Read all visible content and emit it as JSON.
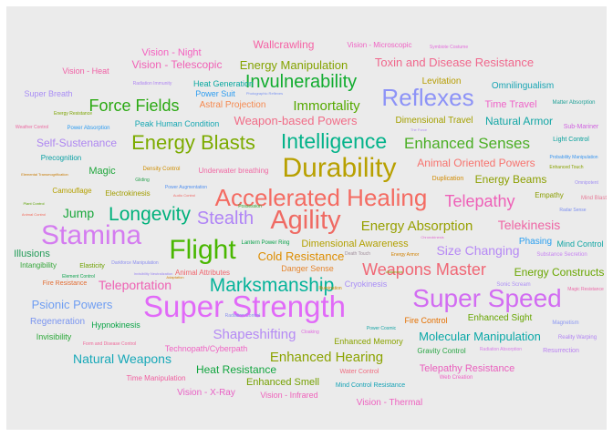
{
  "chart_data": {
    "type": "wordcloud",
    "background_panel": "#ebebeb",
    "color_scale": "hue",
    "words": [
      {
        "text": "Super Strength",
        "weight": 1.0
      },
      {
        "text": "Super Speed",
        "weight": 0.9
      },
      {
        "text": "Stamina",
        "weight": 0.88
      },
      {
        "text": "Flight",
        "weight": 0.86
      },
      {
        "text": "Durability",
        "weight": 0.85
      },
      {
        "text": "Agility",
        "weight": 0.82
      },
      {
        "text": "Accelerated Healing",
        "weight": 0.78
      },
      {
        "text": "Reflexes",
        "weight": 0.75
      },
      {
        "text": "Intelligence",
        "weight": 0.72
      },
      {
        "text": "Energy Blasts",
        "weight": 0.7
      },
      {
        "text": "Marksmanship",
        "weight": 0.67
      },
      {
        "text": "Longevity",
        "weight": 0.66
      },
      {
        "text": "Stealth",
        "weight": 0.62
      },
      {
        "text": "Invulnerability",
        "weight": 0.62
      },
      {
        "text": "Weapons Master",
        "weight": 0.58
      },
      {
        "text": "Telepathy",
        "weight": 0.57
      },
      {
        "text": "Enhanced Senses",
        "weight": 0.55
      },
      {
        "text": "Force Fields",
        "weight": 0.55
      },
      {
        "text": "Immortality",
        "weight": 0.5
      },
      {
        "text": "Energy Absorption",
        "weight": 0.5
      },
      {
        "text": "Enhanced Hearing",
        "weight": 0.48
      },
      {
        "text": "Shapeshifting",
        "weight": 0.46
      },
      {
        "text": "Teleportation",
        "weight": 0.44
      },
      {
        "text": "Natural Weapons",
        "weight": 0.44
      },
      {
        "text": "Size Changing",
        "weight": 0.43
      },
      {
        "text": "Telekinesis",
        "weight": 0.42
      },
      {
        "text": "Energy Manipulation",
        "weight": 0.42
      },
      {
        "text": "Toxin and Disease Resistance",
        "weight": 0.4
      },
      {
        "text": "Jump",
        "weight": 0.4
      },
      {
        "text": "Psionic Powers",
        "weight": 0.38
      },
      {
        "text": "Molecular Manipulation",
        "weight": 0.38
      },
      {
        "text": "Weapon-based Powers",
        "weight": 0.38
      },
      {
        "text": "Cold Resistance",
        "weight": 0.38
      },
      {
        "text": "Wallcrawling",
        "weight": 0.36
      },
      {
        "text": "Heat Resistance",
        "weight": 0.36
      },
      {
        "text": "Self-Sustenance",
        "weight": 0.35
      },
      {
        "text": "Energy Beams",
        "weight": 0.35
      },
      {
        "text": "Animal Oriented Powers",
        "weight": 0.35
      },
      {
        "text": "Energy Constructs",
        "weight": 0.34
      },
      {
        "text": "Vision - Telescopic",
        "weight": 0.34
      },
      {
        "text": "Natural Armor",
        "weight": 0.34
      },
      {
        "text": "Time Travel",
        "weight": 0.33
      },
      {
        "text": "Dimensional Awareness",
        "weight": 0.33
      },
      {
        "text": "Vision - Night",
        "weight": 0.33
      },
      {
        "text": "Magic",
        "weight": 0.33
      },
      {
        "text": "Illusions",
        "weight": 0.32
      },
      {
        "text": "Enhanced Smell",
        "weight": 0.32
      },
      {
        "text": "Telepathy Resistance",
        "weight": 0.32
      },
      {
        "text": "Omnilingualism",
        "weight": 0.32
      },
      {
        "text": "Vision - X-Ray",
        "weight": 0.31
      },
      {
        "text": "Vision - Thermal",
        "weight": 0.31
      },
      {
        "text": "Phasing",
        "weight": 0.31
      },
      {
        "text": "Enhanced Sight",
        "weight": 0.31
      },
      {
        "text": "Regeneration",
        "weight": 0.3
      },
      {
        "text": "Dimensional Travel",
        "weight": 0.3
      },
      {
        "text": "Levitation",
        "weight": 0.3
      },
      {
        "text": "Mind Control",
        "weight": 0.3
      },
      {
        "text": "Enhanced Memory",
        "weight": 0.3
      },
      {
        "text": "Invisibility",
        "weight": 0.3
      },
      {
        "text": "Hypnokinesis",
        "weight": 0.3
      },
      {
        "text": "Astral Projection",
        "weight": 0.3
      },
      {
        "text": "Power Suit",
        "weight": 0.3
      },
      {
        "text": "Heat Generation",
        "weight": 0.29
      },
      {
        "text": "Danger Sense",
        "weight": 0.29
      },
      {
        "text": "Technopath/Cyberpath",
        "weight": 0.29
      },
      {
        "text": "Vision - Heat",
        "weight": 0.29
      },
      {
        "text": "Cryokinesis",
        "weight": 0.29
      },
      {
        "text": "Fire Control",
        "weight": 0.29
      },
      {
        "text": "Vision - Infrared",
        "weight": 0.29
      },
      {
        "text": "Super Breath",
        "weight": 0.29
      },
      {
        "text": "Peak Human Condition",
        "weight": 0.28
      },
      {
        "text": "Vision - Microscopic",
        "weight": 0.28
      },
      {
        "text": "Underwater breathing",
        "weight": 0.28
      },
      {
        "text": "Animal Attributes",
        "weight": 0.28
      },
      {
        "text": "Time Manipulation",
        "weight": 0.27
      },
      {
        "text": "Electrokinesis",
        "weight": 0.27
      },
      {
        "text": "Camouflage",
        "weight": 0.27
      },
      {
        "text": "Intangibility",
        "weight": 0.27
      },
      {
        "text": "Gravity Control",
        "weight": 0.27
      },
      {
        "text": "Precognition",
        "weight": 0.26
      },
      {
        "text": "Empathy",
        "weight": 0.26
      },
      {
        "text": "Duplication",
        "weight": 0.26
      },
      {
        "text": "Water Control",
        "weight": 0.26
      },
      {
        "text": "Mind Control Resistance",
        "weight": 0.26
      },
      {
        "text": "Fire Resistance",
        "weight": 0.26
      },
      {
        "text": "Resurrection",
        "weight": 0.26
      },
      {
        "text": "Elasticity",
        "weight": 0.26
      },
      {
        "text": "Sub-Mariner",
        "weight": 0.26
      },
      {
        "text": "Light Control",
        "weight": 0.26
      },
      {
        "text": "Density Control",
        "weight": 0.26
      },
      {
        "text": "Matter Absorption",
        "weight": 0.26
      },
      {
        "text": "Power Absorption",
        "weight": 0.26
      },
      {
        "text": "Web Creation",
        "weight": 0.26
      },
      {
        "text": "Lantern Power Ring",
        "weight": 0.25
      },
      {
        "text": "Sonic Scream",
        "weight": 0.25
      },
      {
        "text": "Magnetism",
        "weight": 0.25
      },
      {
        "text": "Reality Warping",
        "weight": 0.25
      },
      {
        "text": "Substance Secretion",
        "weight": 0.25
      },
      {
        "text": "Radiation Absorption",
        "weight": 0.25
      },
      {
        "text": "Radiation Immunity",
        "weight": 0.25
      },
      {
        "text": "Symbiote Costume",
        "weight": 0.25
      },
      {
        "text": "Energy Resistance",
        "weight": 0.25
      },
      {
        "text": "Weather Control",
        "weight": 0.25
      },
      {
        "text": "Enhanced Touch",
        "weight": 0.24
      },
      {
        "text": "Probability Manipulation",
        "weight": 0.24
      },
      {
        "text": "Omnipotent",
        "weight": 0.24
      },
      {
        "text": "Mind Blast",
        "weight": 0.24
      },
      {
        "text": "Radar Sense",
        "weight": 0.24
      },
      {
        "text": "Magic Resistance",
        "weight": 0.24
      },
      {
        "text": "Possession",
        "weight": 0.24
      },
      {
        "text": "Power Augmentation",
        "weight": 0.24
      },
      {
        "text": "Element Control",
        "weight": 0.24
      },
      {
        "text": "Darkforce Manipulation",
        "weight": 0.24
      },
      {
        "text": "Form and Disease Control",
        "weight": 0.24
      },
      {
        "text": "Radiation Control",
        "weight": 0.24
      },
      {
        "text": "Gliding",
        "weight": 0.24
      },
      {
        "text": "Death Touch",
        "weight": 0.24
      },
      {
        "text": "Energy Armor",
        "weight": 0.24
      },
      {
        "text": "Power Cosmic",
        "weight": 0.24
      },
      {
        "text": "Cloaking",
        "weight": 0.24
      },
      {
        "text": "Illumination",
        "weight": 0.24
      },
      {
        "text": "Elemental Transmogrification",
        "weight": 0.24
      },
      {
        "text": "Audio Control",
        "weight": 0.24
      },
      {
        "text": "Plant Control",
        "weight": 0.24
      },
      {
        "text": "Animal Control",
        "weight": 0.24
      },
      {
        "text": "Adaptation",
        "weight": 0.24
      },
      {
        "text": "Vitakinesis",
        "weight": 0.24
      },
      {
        "text": "Chronokinesis",
        "weight": 0.24
      },
      {
        "text": "The Force",
        "weight": 0.24
      },
      {
        "text": "Photographic Reflexes",
        "weight": 0.24
      },
      {
        "text": "Invisibility Neutralization",
        "weight": 0.24
      }
    ]
  },
  "words": [
    "Super Strength",
    "Super Speed",
    "Stamina",
    "Flight",
    "Durability",
    "Agility",
    "Accelerated Healing",
    "Reflexes",
    "Intelligence",
    "Energy Blasts",
    "Marksmanship",
    "Longevity",
    "Stealth",
    "Invulnerability",
    "Weapons Master",
    "Telepathy",
    "Enhanced Senses",
    "Force Fields",
    "Immortality",
    "Energy Absorption",
    "Enhanced Hearing",
    "Shapeshifting",
    "Teleportation",
    "Natural Weapons",
    "Size Changing",
    "Telekinesis",
    "Energy Manipulation",
    "Toxin and Disease Resistance",
    "Jump",
    "Psionic Powers",
    "Molecular Manipulation",
    "Weapon-based Powers",
    "Cold Resistance",
    "Wallcrawling",
    "Heat Resistance",
    "Self-Sustenance",
    "Energy Beams",
    "Animal Oriented Powers",
    "Energy Constructs",
    "Vision - Telescopic",
    "Natural Armor",
    "Time Travel",
    "Dimensional Awareness",
    "Vision - Night",
    "Magic",
    "Illusions",
    "Enhanced Smell",
    "Telepathy Resistance",
    "Omnilingualism",
    "Vision - X-Ray",
    "Vision - Thermal",
    "Phasing",
    "Enhanced Sight",
    "Regeneration",
    "Dimensional Travel",
    "Levitation",
    "Mind Control",
    "Enhanced Memory",
    "Invisibility",
    "Hypnokinesis",
    "Astral Projection",
    "Power Suit",
    "Heat Generation",
    "Danger Sense",
    "Technopath/Cyberpath",
    "Vision - Heat",
    "Cryokinesis",
    "Fire Control",
    "Vision - Infrared",
    "Super Breath",
    "Peak Human Condition",
    "Vision - Microscopic",
    "Underwater breathing",
    "Animal Attributes",
    "Time Manipulation",
    "Electrokinesis",
    "Camouflage",
    "Intangibility",
    "Gravity Control",
    "Precognition",
    "Empathy",
    "Duplication",
    "Water Control",
    "Mind Control Resistance",
    "Fire Resistance",
    "Resurrection",
    "Elasticity",
    "Sub-Mariner",
    "Light Control",
    "Density Control",
    "Matter Absorption",
    "Power Absorption",
    "Web Creation",
    "Lantern Power Ring",
    "Sonic Scream",
    "Magnetism",
    "Reality Warping",
    "Substance Secretion",
    "Radiation Absorption",
    "Radiation Immunity",
    "Symbiote Costume",
    "Energy Resistance",
    "Weather Control",
    "Enhanced Touch",
    "Probability Manipulation",
    "Omnipotent",
    "Mind Blast",
    "Radar Sense",
    "Magic Resistance",
    "Possession",
    "Power Augmentation",
    "Element Control",
    "Darkforce Manipulation",
    "Form and Disease Control",
    "Radiation Control",
    "Gliding",
    "Death Touch",
    "Energy Armor",
    "Power Cosmic",
    "Cloaking",
    "Illumination",
    "Elemental Transmogrification",
    "Audio Control",
    "Plant Control",
    "Animal Control",
    "Adaptation",
    "Vitakinesis",
    "Chronokinesis",
    "The Force",
    "Photographic Reflexes",
    "Invisibility Neutralization"
  ]
}
